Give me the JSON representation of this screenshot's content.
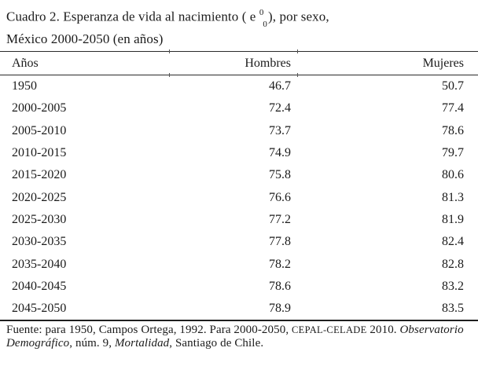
{
  "colors": {
    "text": "#1b1b1b",
    "rule": "#2a2a2a",
    "background": "#ffffff"
  },
  "title": {
    "line1_prefix": "Cuadro 2. Esperanza de vida al nacimiento ( e ",
    "superscript": "0",
    "subscript": "0",
    "line1_suffix": "), por sexo,",
    "line2": "México 2000-2050 (en años)"
  },
  "table": {
    "headers": {
      "years": "Años",
      "men": "Hombres",
      "women": "Mujeres"
    },
    "rows": [
      {
        "years": "1950",
        "men": "46.7",
        "women": "50.7"
      },
      {
        "years": "2000-2005",
        "men": "72.4",
        "women": "77.4"
      },
      {
        "years": "2005-2010",
        "men": "73.7",
        "women": "78.6"
      },
      {
        "years": "2010-2015",
        "men": "74.9",
        "women": "79.7"
      },
      {
        "years": "2015-2020",
        "men": "75.8",
        "women": "80.6"
      },
      {
        "years": "2020-2025",
        "men": "76.6",
        "women": "81.3"
      },
      {
        "years": "2025-2030",
        "men": "77.2",
        "women": "81.9"
      },
      {
        "years": "2030-2035",
        "men": "77.8",
        "women": "82.4"
      },
      {
        "years": "2035-2040",
        "men": "78.2",
        "women": "82.8"
      },
      {
        "years": "2040-2045",
        "men": "78.6",
        "women": "83.2"
      },
      {
        "years": "2045-2050",
        "men": "78.9",
        "women": "83.5"
      }
    ]
  },
  "source": {
    "lines": [
      [
        {
          "text": "Fuente: para 1950, Campos Ortega, 1992. Para 2000-2050, ",
          "style": "normal"
        },
        {
          "text": "CEPAL-CELADE",
          "style": "smallcaps"
        },
        {
          "text": " 2010. ",
          "style": "normal"
        },
        {
          "text": "Observatorio",
          "style": "italic"
        }
      ],
      [
        {
          "text": "Demográfico",
          "style": "italic"
        },
        {
          "text": ", núm. 9, ",
          "style": "normal"
        },
        {
          "text": "Mortalidad",
          "style": "italic"
        },
        {
          "text": ", Santiago de Chile.",
          "style": "normal"
        }
      ]
    ]
  }
}
